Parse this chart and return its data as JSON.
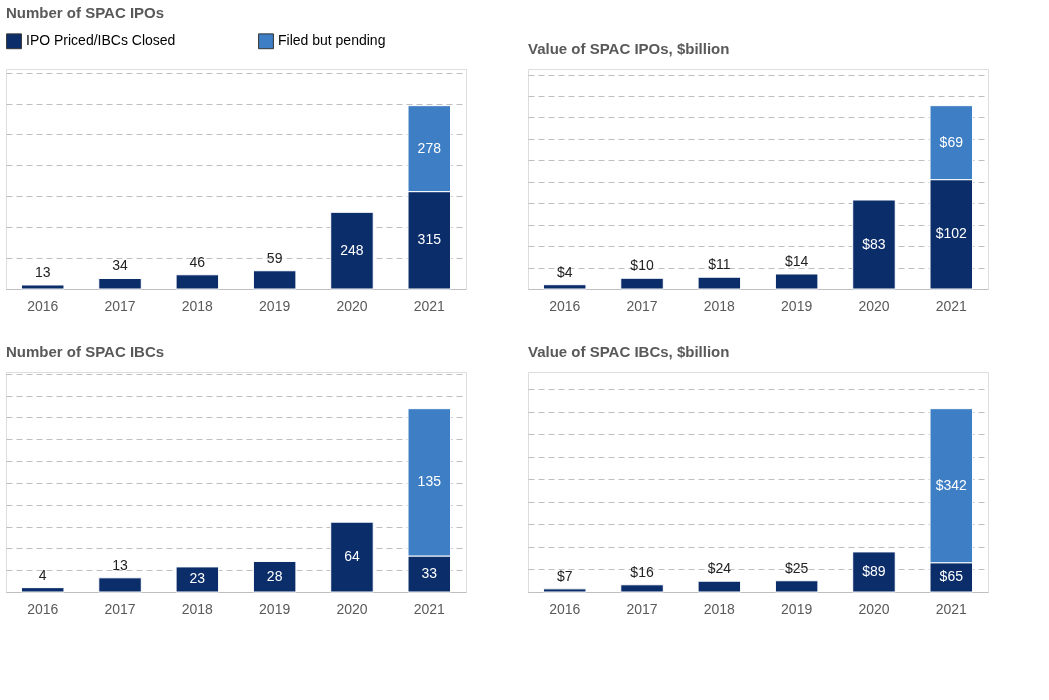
{
  "chart_data": [
    {
      "type": "bar",
      "stacked": true,
      "title": "Number of SPAC IPOs",
      "categories": [
        "2016",
        "2017",
        "2018",
        "2019",
        "2020",
        "2021"
      ],
      "legend": "top left",
      "grid": "y",
      "tick_labels": "x",
      "data_labels": true,
      "series": [
        {
          "name": "IPO Priced/IBCs Closed",
          "color": "#0b2e6b",
          "values": [
            13,
            34,
            46,
            59,
            248,
            315
          ]
        },
        {
          "name": "Filed but pending",
          "color": "#3d7ec4",
          "values": [
            null,
            null,
            null,
            null,
            null,
            278
          ]
        }
      ]
    },
    {
      "type": "bar",
      "stacked": true,
      "title": "Value of SPAC IPOs, $billion",
      "categories": [
        "2016",
        "2017",
        "2018",
        "2019",
        "2020",
        "2021"
      ],
      "grid": "y",
      "tick_labels": "x",
      "series": [
        {
          "color": "#0b2e6b",
          "values": [
            4,
            10,
            11,
            14,
            83,
            102
          ],
          "value_labels": [
            "$4",
            "$10",
            "$11",
            "$14",
            "$83",
            "$102"
          ]
        },
        {
          "color": "#3d7ec4",
          "values": [
            null,
            null,
            null,
            null,
            null,
            69
          ],
          "value_labels": [
            null,
            null,
            null,
            null,
            null,
            "$69"
          ]
        }
      ]
    },
    {
      "type": "bar",
      "stacked": true,
      "title": "Number of SPAC IBCs",
      "categories": [
        "2016",
        "2017",
        "2018",
        "2019",
        "2020",
        "2021"
      ],
      "grid": "y",
      "tick_labels": "x",
      "data_labels": true,
      "series": [
        {
          "color": "#0b2e6b",
          "values": [
            4,
            13,
            23,
            28,
            64,
            33
          ]
        },
        {
          "color": "#3d7ec4",
          "values": [
            null,
            null,
            null,
            null,
            null,
            135
          ]
        }
      ]
    },
    {
      "type": "bar",
      "stacked": true,
      "title": "Value of SPAC IBCs, $billion",
      "categories": [
        "2016",
        "2017",
        "2018",
        "2019",
        "2020",
        "2021"
      ],
      "grid": "y",
      "tick_labels": "x",
      "series": [
        {
          "color": "#0b2e6b",
          "values": [
            7,
            16,
            24,
            25,
            89,
            65
          ],
          "value_labels": [
            "$7",
            "$16",
            "$24",
            "$25",
            "$89",
            "$65"
          ]
        },
        {
          "color": "#3d7ec4",
          "values": [
            null,
            null,
            null,
            null,
            null,
            342
          ],
          "value_labels": [
            null,
            null,
            null,
            null,
            null,
            "$342"
          ]
        }
      ]
    }
  ]
}
